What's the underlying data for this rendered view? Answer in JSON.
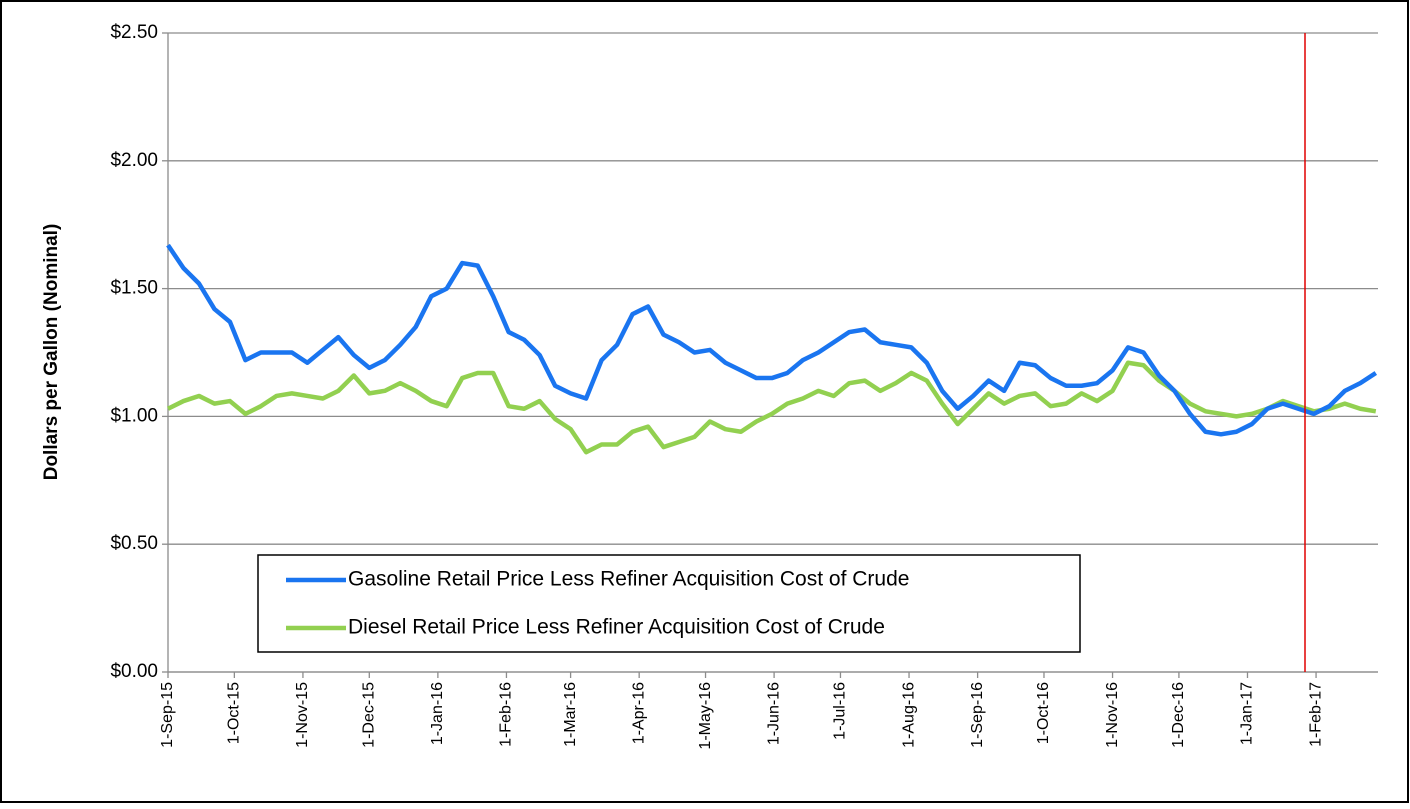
{
  "chart_data": {
    "type": "line",
    "ylabel": "Dollars per Gallon (Nominal)",
    "x": [
      "2015-09-01",
      "2015-09-08",
      "2015-09-15",
      "2015-09-22",
      "2015-09-29",
      "2015-10-06",
      "2015-10-13",
      "2015-10-20",
      "2015-10-27",
      "2015-11-03",
      "2015-11-10",
      "2015-11-17",
      "2015-11-24",
      "2015-12-01",
      "2015-12-08",
      "2015-12-15",
      "2015-12-22",
      "2015-12-29",
      "2016-01-05",
      "2016-01-12",
      "2016-01-19",
      "2016-01-26",
      "2016-02-02",
      "2016-02-09",
      "2016-02-16",
      "2016-02-23",
      "2016-03-01",
      "2016-03-08",
      "2016-03-15",
      "2016-03-22",
      "2016-03-29",
      "2016-04-05",
      "2016-04-12",
      "2016-04-19",
      "2016-04-26",
      "2016-05-03",
      "2016-05-10",
      "2016-05-17",
      "2016-05-24",
      "2016-05-31",
      "2016-06-07",
      "2016-06-14",
      "2016-06-21",
      "2016-06-28",
      "2016-07-05",
      "2016-07-12",
      "2016-07-19",
      "2016-07-26",
      "2016-08-02",
      "2016-08-09",
      "2016-08-16",
      "2016-08-23",
      "2016-08-30",
      "2016-09-06",
      "2016-09-13",
      "2016-09-20",
      "2016-09-27",
      "2016-10-04",
      "2016-10-11",
      "2016-10-18",
      "2016-10-25",
      "2016-11-01",
      "2016-11-08",
      "2016-11-15",
      "2016-11-22",
      "2016-11-29",
      "2016-12-06",
      "2016-12-13",
      "2016-12-20",
      "2016-12-27",
      "2017-01-03",
      "2017-01-10",
      "2017-01-17",
      "2017-01-24",
      "2017-01-31",
      "2017-02-07",
      "2017-02-14",
      "2017-02-21",
      "2017-02-28"
    ],
    "series": [
      {
        "name": "Gasoline Retail Price Less Refiner Acquisition Cost of Crude",
        "color": "#1a75f0",
        "values": [
          1.67,
          1.58,
          1.52,
          1.42,
          1.37,
          1.22,
          1.25,
          1.25,
          1.25,
          1.21,
          1.26,
          1.31,
          1.24,
          1.19,
          1.22,
          1.28,
          1.35,
          1.47,
          1.5,
          1.6,
          1.59,
          1.47,
          1.33,
          1.3,
          1.24,
          1.12,
          1.09,
          1.07,
          1.22,
          1.28,
          1.4,
          1.43,
          1.32,
          1.29,
          1.25,
          1.26,
          1.21,
          1.18,
          1.15,
          1.15,
          1.17,
          1.22,
          1.25,
          1.29,
          1.33,
          1.34,
          1.29,
          1.28,
          1.27,
          1.21,
          1.1,
          1.03,
          1.08,
          1.14,
          1.1,
          1.21,
          1.2,
          1.15,
          1.12,
          1.12,
          1.13,
          1.18,
          1.27,
          1.25,
          1.16,
          1.1,
          1.01,
          0.94,
          0.93,
          0.94,
          0.97,
          1.03,
          1.05,
          1.03,
          1.01,
          1.04,
          1.1,
          1.13,
          1.17
        ]
      },
      {
        "name": "Diesel Retail Price Less Refiner Acquisition Cost of Crude",
        "color": "#92d050",
        "values": [
          1.03,
          1.06,
          1.08,
          1.05,
          1.06,
          1.01,
          1.04,
          1.08,
          1.09,
          1.08,
          1.07,
          1.1,
          1.16,
          1.09,
          1.1,
          1.13,
          1.1,
          1.06,
          1.04,
          1.15,
          1.17,
          1.17,
          1.04,
          1.03,
          1.06,
          0.99,
          0.95,
          0.86,
          0.89,
          0.89,
          0.94,
          0.96,
          0.88,
          0.9,
          0.92,
          0.98,
          0.95,
          0.94,
          0.98,
          1.01,
          1.05,
          1.07,
          1.1,
          1.08,
          1.13,
          1.14,
          1.1,
          1.13,
          1.17,
          1.14,
          1.05,
          0.97,
          1.03,
          1.09,
          1.05,
          1.08,
          1.09,
          1.04,
          1.05,
          1.09,
          1.06,
          1.1,
          1.21,
          1.2,
          1.14,
          1.1,
          1.05,
          1.02,
          1.01,
          1.0,
          1.01,
          1.03,
          1.06,
          1.04,
          1.02,
          1.03,
          1.05,
          1.03,
          1.02
        ]
      }
    ],
    "xlim": [
      "2015-09-01",
      "2017-03-01"
    ],
    "xticks": [
      {
        "value": "2015-09-01",
        "label": "1-Sep-15"
      },
      {
        "value": "2015-10-01",
        "label": "1-Oct-15"
      },
      {
        "value": "2015-11-01",
        "label": "1-Nov-15"
      },
      {
        "value": "2015-12-01",
        "label": "1-Dec-15"
      },
      {
        "value": "2016-01-01",
        "label": "1-Jan-16"
      },
      {
        "value": "2016-02-01",
        "label": "1-Feb-16"
      },
      {
        "value": "2016-03-01",
        "label": "1-Mar-16"
      },
      {
        "value": "2016-04-01",
        "label": "1-Apr-16"
      },
      {
        "value": "2016-05-01",
        "label": "1-May-16"
      },
      {
        "value": "2016-06-01",
        "label": "1-Jun-16"
      },
      {
        "value": "2016-07-01",
        "label": "1-Jul-16"
      },
      {
        "value": "2016-08-01",
        "label": "1-Aug-16"
      },
      {
        "value": "2016-09-01",
        "label": "1-Sep-16"
      },
      {
        "value": "2016-10-01",
        "label": "1-Oct-16"
      },
      {
        "value": "2016-11-01",
        "label": "1-Nov-16"
      },
      {
        "value": "2016-12-01",
        "label": "1-Dec-16"
      },
      {
        "value": "2017-01-01",
        "label": "1-Jan-17"
      },
      {
        "value": "2017-02-01",
        "label": "1-Feb-17"
      }
    ],
    "ylim": [
      0,
      2.5
    ],
    "yticks": [
      {
        "value": 0,
        "label": "$0.00"
      },
      {
        "value": 0.5,
        "label": "$0.50"
      },
      {
        "value": 1,
        "label": "$1.00"
      },
      {
        "value": 1.5,
        "label": "$1.50"
      },
      {
        "value": 2,
        "label": "$2.00"
      },
      {
        "value": 2.5,
        "label": "$2.50"
      }
    ],
    "grid": true,
    "legend": "lower-left",
    "vline_x": "2017-01-27",
    "vline_color": "#e00000"
  }
}
